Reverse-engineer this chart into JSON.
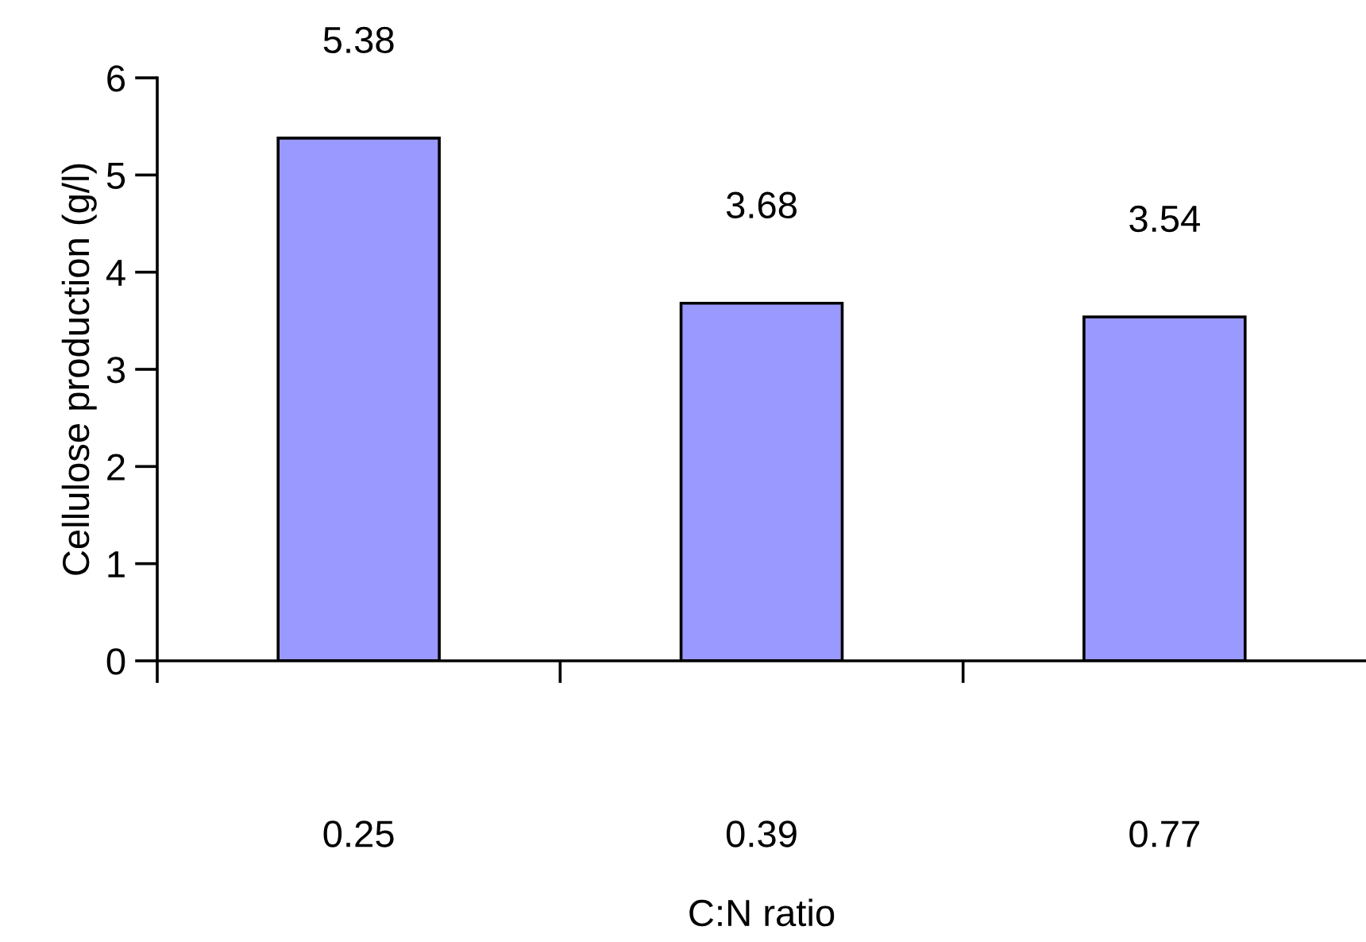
{
  "chart_data": {
    "type": "bar",
    "xlabel": "C:N ratio",
    "ylabel": "Cellulose production (g/l)",
    "categories": [
      "0.25",
      "0.39",
      "0.77"
    ],
    "values": [
      5.38,
      3.68,
      3.54
    ],
    "color": "#9999ff",
    "ylim": [
      0,
      6
    ],
    "yticks": [
      0,
      1,
      2,
      3,
      4,
      5,
      6
    ],
    "data_labels": true
  }
}
